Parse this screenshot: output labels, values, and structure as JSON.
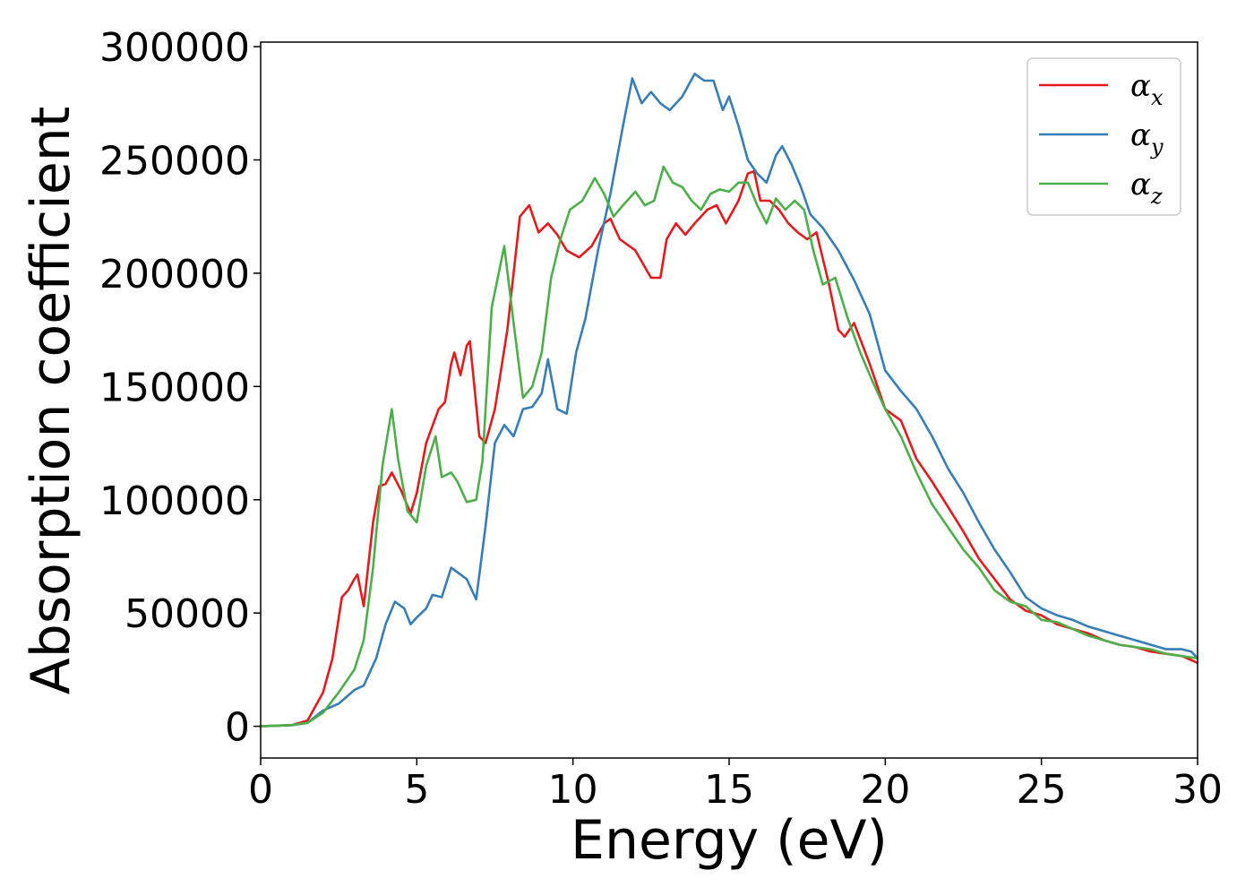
{
  "chart_data": {
    "type": "line",
    "title": "",
    "xlabel": "Energy (eV)",
    "ylabel": "Absorption coefficient",
    "xlim": [
      0,
      30
    ],
    "ylim": [
      -14000,
      302000
    ],
    "xticks": [
      0,
      5,
      10,
      15,
      20,
      25,
      30
    ],
    "xtick_labels": [
      "0",
      "5",
      "10",
      "15",
      "20",
      "25",
      "30"
    ],
    "yticks": [
      0,
      50000,
      100000,
      150000,
      200000,
      250000,
      300000
    ],
    "ytick_labels": [
      "0",
      "50000",
      "100000",
      "150000",
      "200000",
      "250000",
      "300000"
    ],
    "grid": false,
    "legend_position": "top-right",
    "series": [
      {
        "name": "αx",
        "symbol": "α",
        "subscript": "x",
        "color": "#e41a1c",
        "x": [
          0,
          1,
          1.5,
          2.0,
          2.3,
          2.6,
          2.8,
          3.0,
          3.1,
          3.3,
          3.6,
          3.8,
          4.0,
          4.2,
          4.5,
          4.8,
          5.0,
          5.3,
          5.7,
          5.9,
          6.1,
          6.2,
          6.4,
          6.6,
          6.7,
          7.0,
          7.2,
          7.5,
          7.9,
          8.3,
          8.6,
          8.9,
          9.2,
          9.5,
          9.8,
          10.2,
          10.6,
          11.0,
          11.2,
          11.5,
          12.0,
          12.5,
          12.8,
          13.0,
          13.3,
          13.6,
          13.9,
          14.3,
          14.6,
          14.9,
          15.3,
          15.6,
          15.8,
          16.0,
          16.3,
          16.6,
          16.9,
          17.2,
          17.5,
          17.8,
          18.2,
          18.5,
          18.7,
          19.0,
          19.5,
          20.0,
          20.5,
          21.0,
          21.5,
          22.0,
          22.5,
          23.0,
          23.5,
          24.0,
          24.5,
          25.0,
          25.5,
          26.0,
          26.5,
          27.0,
          27.5,
          28.0,
          28.5,
          29.0,
          29.5,
          30.0
        ],
        "values": [
          0,
          500,
          2500,
          15000,
          30000,
          57000,
          60000,
          65000,
          67000,
          53000,
          90000,
          106000,
          107000,
          112000,
          104000,
          94000,
          103000,
          125000,
          140000,
          143000,
          160000,
          165000,
          155000,
          168000,
          170000,
          128000,
          125000,
          140000,
          175000,
          225000,
          230000,
          218000,
          222000,
          217000,
          210000,
          207000,
          212000,
          222000,
          224000,
          215000,
          210000,
          198000,
          198000,
          215000,
          222000,
          217000,
          222000,
          228000,
          230000,
          222000,
          232000,
          244000,
          245000,
          232000,
          232000,
          228000,
          222000,
          218000,
          215000,
          218000,
          195000,
          175000,
          172000,
          178000,
          160000,
          140000,
          135000,
          118000,
          108000,
          97000,
          86000,
          74000,
          65000,
          56000,
          51000,
          49000,
          45000,
          43000,
          41000,
          38000,
          36000,
          35000,
          33000,
          32000,
          31000,
          28000
        ]
      },
      {
        "name": "αy",
        "symbol": "α",
        "subscript": "y",
        "color": "#377eb8",
        "x": [
          0,
          1,
          1.5,
          2.0,
          2.5,
          3.0,
          3.3,
          3.7,
          4.0,
          4.3,
          4.6,
          4.8,
          5.0,
          5.3,
          5.5,
          5.8,
          6.1,
          6.3,
          6.6,
          6.9,
          7.2,
          7.5,
          7.8,
          8.1,
          8.4,
          8.7,
          9.0,
          9.2,
          9.5,
          9.8,
          10.1,
          10.4,
          10.8,
          11.2,
          11.6,
          11.9,
          12.2,
          12.5,
          12.8,
          13.1,
          13.5,
          13.9,
          14.2,
          14.5,
          14.8,
          15.0,
          15.3,
          15.6,
          15.9,
          16.2,
          16.5,
          16.7,
          17.0,
          17.3,
          17.6,
          18.0,
          18.5,
          19.0,
          19.5,
          20.0,
          20.5,
          21.0,
          21.5,
          22.0,
          22.5,
          23.0,
          23.5,
          24.0,
          24.5,
          25.0,
          25.5,
          26.0,
          26.5,
          27.0,
          27.5,
          28.0,
          28.5,
          29.0,
          29.5,
          29.8,
          30.0
        ],
        "values": [
          0,
          500,
          1500,
          7000,
          10000,
          16000,
          18000,
          30000,
          45000,
          55000,
          52000,
          45000,
          48000,
          52000,
          58000,
          57000,
          70000,
          68000,
          65000,
          56000,
          88000,
          125000,
          133000,
          128000,
          140000,
          141000,
          147000,
          162000,
          140000,
          138000,
          165000,
          180000,
          210000,
          235000,
          265000,
          286000,
          275000,
          280000,
          275000,
          272000,
          278000,
          288000,
          285000,
          285000,
          272000,
          278000,
          265000,
          250000,
          244000,
          240000,
          252000,
          256000,
          248000,
          238000,
          226000,
          220000,
          210000,
          197000,
          182000,
          157000,
          148000,
          140000,
          128000,
          114000,
          103000,
          90000,
          78000,
          68000,
          57000,
          52000,
          49000,
          47000,
          44000,
          42000,
          40000,
          38000,
          36000,
          34000,
          34000,
          33000,
          30000
        ]
      },
      {
        "name": "αz",
        "symbol": "α",
        "subscript": "z",
        "color": "#4daf4a",
        "x": [
          0,
          1,
          1.5,
          2.0,
          2.5,
          3.0,
          3.3,
          3.6,
          3.9,
          4.2,
          4.4,
          4.7,
          5.0,
          5.3,
          5.6,
          5.8,
          6.1,
          6.3,
          6.6,
          6.9,
          7.1,
          7.4,
          7.8,
          8.1,
          8.4,
          8.7,
          9.0,
          9.3,
          9.6,
          9.9,
          10.3,
          10.7,
          11.0,
          11.3,
          11.6,
          12.0,
          12.3,
          12.6,
          12.9,
          13.2,
          13.5,
          13.8,
          14.1,
          14.4,
          14.7,
          15.0,
          15.3,
          15.6,
          15.9,
          16.2,
          16.5,
          16.8,
          17.1,
          17.4,
          17.7,
          18.0,
          18.4,
          18.8,
          19.2,
          19.6,
          20.0,
          20.5,
          21.0,
          21.5,
          22.0,
          22.5,
          23.0,
          23.5,
          24.0,
          24.5,
          25.0,
          25.5,
          26.0,
          26.5,
          27.0,
          27.5,
          28.0,
          28.5,
          29.0,
          29.5,
          30.0
        ],
        "values": [
          0,
          500,
          1500,
          6000,
          15000,
          25000,
          38000,
          70000,
          115000,
          140000,
          118000,
          95000,
          90000,
          115000,
          128000,
          110000,
          112000,
          108000,
          99000,
          100000,
          117000,
          185000,
          212000,
          178000,
          145000,
          150000,
          165000,
          198000,
          215000,
          228000,
          232000,
          242000,
          235000,
          225000,
          230000,
          236000,
          230000,
          232000,
          247000,
          240000,
          238000,
          232000,
          228000,
          235000,
          237000,
          236000,
          240000,
          240000,
          230000,
          222000,
          233000,
          228000,
          232000,
          228000,
          210000,
          195000,
          198000,
          180000,
          165000,
          152000,
          140000,
          128000,
          112000,
          98000,
          88000,
          78000,
          70000,
          60000,
          55000,
          53000,
          47000,
          46000,
          43000,
          40000,
          38000,
          36000,
          35000,
          34000,
          32000,
          31000,
          30000
        ]
      }
    ]
  }
}
